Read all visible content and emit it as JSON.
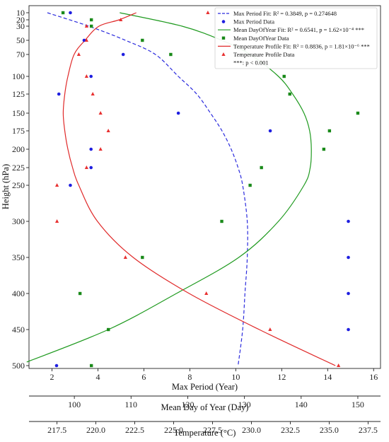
{
  "chart_data": {
    "type": "scatter",
    "ylabel": "Height (hPa)",
    "y_ticks": [
      10,
      20,
      30,
      50,
      70,
      100,
      125,
      150,
      175,
      200,
      225,
      250,
      300,
      350,
      400,
      450,
      500
    ],
    "y_tick_labels": [
      "10",
      "20",
      "30",
      "50",
      "70",
      "100",
      "125",
      "150",
      "175",
      "200",
      "225",
      "250",
      "300",
      "350",
      "400",
      "450",
      "500"
    ],
    "ylim_top": 10,
    "ylim_bottom": 500,
    "x_axes": [
      {
        "label": "Max Period (Year)",
        "range": [
          1,
          16.3
        ],
        "ticks": [
          2,
          4,
          6,
          8,
          10,
          12,
          14,
          16
        ],
        "tick_labels": [
          "2",
          "4",
          "6",
          "8",
          "10",
          "12",
          "14",
          "16"
        ]
      },
      {
        "label": "Mean Day of Year (Day)",
        "range": [
          92,
          154
        ],
        "ticks": [
          100,
          110,
          120,
          130,
          140,
          150
        ],
        "tick_labels": [
          "100",
          "110",
          "120",
          "130",
          "140",
          "150"
        ]
      },
      {
        "label": "Temperature (°C)",
        "range": [
          215.7,
          238.3
        ],
        "ticks": [
          217.5,
          220.0,
          222.5,
          225.0,
          227.5,
          230.0,
          232.5,
          235.0,
          237.5
        ],
        "tick_labels": [
          "217.5",
          "220.0",
          "222.5",
          "225.0",
          "227.5",
          "230.0",
          "232.5",
          "235.0",
          "237.5"
        ]
      }
    ],
    "series": [
      {
        "name": "Max Period Data",
        "axis": 0,
        "kind": "scatter",
        "marker": "circle",
        "color": "#1f1fe0",
        "points": [
          [
            2.2,
            500
          ],
          [
            2.8,
            250
          ],
          [
            3.7,
            225
          ],
          [
            3.7,
            200
          ],
          [
            2.3,
            125
          ],
          [
            3.7,
            100
          ],
          [
            5.1,
            70
          ],
          [
            3.4,
            50
          ],
          [
            2.8,
            10
          ],
          [
            7.5,
            150
          ],
          [
            11.5,
            175
          ],
          [
            14.9,
            300
          ],
          [
            14.9,
            350
          ],
          [
            14.9,
            400
          ],
          [
            14.9,
            450
          ]
        ]
      },
      {
        "name": "Mean DayOfYear Data",
        "axis": 1,
        "kind": "scatter",
        "marker": "square",
        "color": "#1a8a1a",
        "points": [
          [
            98,
            10
          ],
          [
            103,
            20
          ],
          [
            103,
            30
          ],
          [
            112,
            50
          ],
          [
            117,
            70
          ],
          [
            137,
            100
          ],
          [
            138,
            125
          ],
          [
            150,
            150
          ],
          [
            145,
            175
          ],
          [
            144,
            200
          ],
          [
            133,
            225
          ],
          [
            131,
            250
          ],
          [
            126,
            300
          ],
          [
            112,
            350
          ],
          [
            101,
            400
          ],
          [
            106,
            450
          ],
          [
            103,
            500
          ]
        ]
      },
      {
        "name": "Temperature Profile Data",
        "axis": 2,
        "kind": "scatter",
        "marker": "triangle",
        "color": "#e83030",
        "points": [
          [
            227.2,
            10
          ],
          [
            221.6,
            20
          ],
          [
            219.4,
            30
          ],
          [
            219.4,
            50
          ],
          [
            218.9,
            70
          ],
          [
            219.4,
            100
          ],
          [
            219.8,
            125
          ],
          [
            220.3,
            150
          ],
          [
            220.8,
            175
          ],
          [
            220.3,
            200
          ],
          [
            219.4,
            225
          ],
          [
            217.5,
            250
          ],
          [
            217.5,
            300
          ],
          [
            221.9,
            350
          ],
          [
            227.1,
            400
          ],
          [
            231.2,
            450
          ],
          [
            235.6,
            500
          ]
        ]
      },
      {
        "name": "Max Period Fit",
        "axis": 0,
        "kind": "line",
        "color": "#2b2bdd",
        "dash": "5,3",
        "points": [
          [
            1.8,
            10
          ],
          [
            3.6,
            30
          ],
          [
            5.2,
            50
          ],
          [
            6.5,
            70
          ],
          [
            7.5,
            100
          ],
          [
            8.3,
            125
          ],
          [
            8.9,
            150
          ],
          [
            9.4,
            175
          ],
          [
            9.8,
            200
          ],
          [
            10.1,
            225
          ],
          [
            10.3,
            250
          ],
          [
            10.5,
            300
          ],
          [
            10.5,
            350
          ],
          [
            10.4,
            400
          ],
          [
            10.3,
            450
          ],
          [
            10.1,
            500
          ]
        ]
      },
      {
        "name": "Mean DayOfYear Fit",
        "axis": 1,
        "kind": "line",
        "color": "#1f9a1f",
        "points": [
          [
            108,
            10
          ],
          [
            119,
            30
          ],
          [
            126,
            50
          ],
          [
            131,
            70
          ],
          [
            136,
            100
          ],
          [
            138.5,
            125
          ],
          [
            140.5,
            150
          ],
          [
            141.5,
            175
          ],
          [
            141.8,
            200
          ],
          [
            141.6,
            225
          ],
          [
            140.5,
            250
          ],
          [
            136,
            300
          ],
          [
            129,
            350
          ],
          [
            118,
            400
          ],
          [
            106,
            450
          ],
          [
            91.6,
            495
          ]
        ]
      },
      {
        "name": "Temperature Profile Fit",
        "axis": 2,
        "kind": "line",
        "color": "#e02a2a",
        "points": [
          [
            222.6,
            10
          ],
          [
            221.5,
            20
          ],
          [
            220.2,
            30
          ],
          [
            219.3,
            50
          ],
          [
            218.6,
            70
          ],
          [
            218.2,
            100
          ],
          [
            218.0,
            125
          ],
          [
            217.9,
            150
          ],
          [
            218.0,
            175
          ],
          [
            218.2,
            200
          ],
          [
            218.5,
            225
          ],
          [
            218.9,
            250
          ],
          [
            220.1,
            300
          ],
          [
            222.4,
            350
          ],
          [
            226.0,
            400
          ],
          [
            230.5,
            450
          ],
          [
            235.4,
            500
          ]
        ]
      }
    ],
    "legend": {
      "position": "top-right",
      "entries": [
        {
          "label": "Max Period Fit: R² = 0.3849, p = 0.274648",
          "style": "dashed-line",
          "color": "#2b2bdd"
        },
        {
          "label": "Max Period Data",
          "style": "circle",
          "color": "#1f1fe0"
        },
        {
          "label": "Mean DayOfYear Fit: R² = 0.6541, p = 1.62×10⁻⁴ ***",
          "style": "line",
          "color": "#1f9a1f"
        },
        {
          "label": "Mean DayOfYear Data",
          "style": "square",
          "color": "#1a8a1a"
        },
        {
          "label": "Temperature Profile Fit: R² = 0.8836, p = 1.81×10⁻⁶ ***",
          "style": "line",
          "color": "#e02a2a"
        },
        {
          "label": "Temperature Profile Data",
          "style": "triangle",
          "color": "#e83030"
        },
        {
          "label": "***: p < 0.001",
          "style": "none",
          "color": ""
        }
      ]
    }
  }
}
